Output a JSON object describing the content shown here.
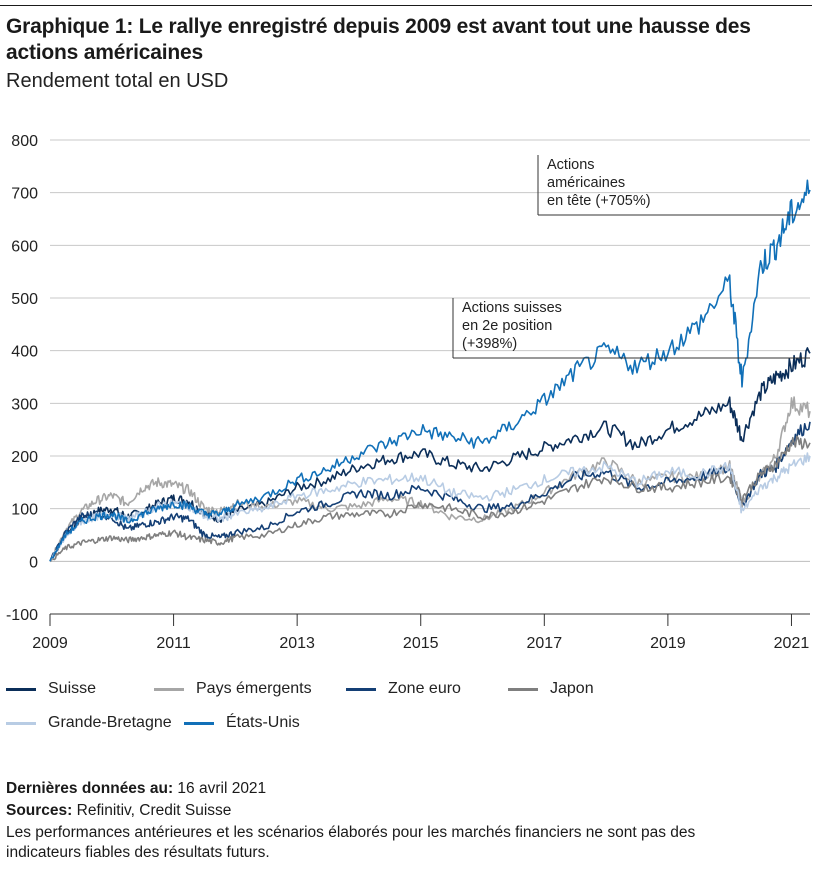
{
  "header": {
    "title": "Graphique 1: Le rallye enregistré depuis 2009 est avant tout une hausse des actions américaines",
    "subtitle": "Rendement total en USD"
  },
  "footer": {
    "last_data_label": "Dernières données au:",
    "last_data_value": "16 avril 2021",
    "sources_label": "Sources:",
    "sources_value": "Refinitiv, Credit Suisse",
    "disclaimer": "Les performances antérieures et les scénarios élaborés pour les marchés financiers ne sont pas des indicateurs fiables des résultats futurs."
  },
  "chart_data": {
    "type": "line",
    "title": "",
    "xlabel": "",
    "ylabel": "",
    "xlim": [
      2009,
      2021.3
    ],
    "ylim": [
      -100,
      800
    ],
    "yticks": [
      -100,
      0,
      100,
      200,
      300,
      400,
      500,
      600,
      700,
      800
    ],
    "xticks": [
      2009,
      2011,
      2013,
      2015,
      2017,
      2019,
      2021
    ],
    "grid": "horizontal",
    "legend_position": "bottom",
    "annotations": [
      {
        "lines": [
          "Actions",
          "américaines",
          "en tête (+705%)"
        ],
        "target_x": 2021.2,
        "target_y": 670
      },
      {
        "lines": [
          "Actions suisses",
          "en 2e position",
          "(+398%)"
        ],
        "target_x": 2021.2,
        "target_y": 385
      }
    ],
    "series": [
      {
        "name": "Suisse",
        "color": "#0b2e59",
        "x": [
          2009,
          2009.25,
          2009.5,
          2009.75,
          2010,
          2010.25,
          2010.5,
          2010.75,
          2011,
          2011.25,
          2011.5,
          2011.75,
          2012,
          2012.5,
          2013,
          2013.5,
          2014,
          2014.5,
          2015,
          2015.5,
          2016,
          2016.5,
          2017,
          2017.5,
          2018,
          2018.5,
          2019,
          2019.5,
          2020,
          2020.2,
          2020.5,
          2020.75,
          2021,
          2021.3
        ],
        "values": [
          0,
          50,
          80,
          95,
          100,
          85,
          95,
          110,
          120,
          115,
          90,
          80,
          95,
          110,
          140,
          155,
          180,
          195,
          205,
          185,
          175,
          195,
          215,
          235,
          255,
          220,
          250,
          275,
          300,
          235,
          320,
          350,
          370,
          395
        ]
      },
      {
        "name": "Pays émergents",
        "color": "#a6a6a6",
        "x": [
          2009,
          2009.25,
          2009.5,
          2009.75,
          2010,
          2010.25,
          2010.5,
          2010.75,
          2011,
          2011.25,
          2011.5,
          2011.75,
          2012,
          2012.5,
          2013,
          2013.5,
          2014,
          2014.5,
          2015,
          2015.5,
          2016,
          2016.5,
          2017,
          2017.5,
          2018,
          2018.5,
          2019,
          2019.5,
          2020,
          2020.2,
          2020.5,
          2020.75,
          2021,
          2021.3
        ],
        "values": [
          0,
          60,
          95,
          115,
          125,
          110,
          140,
          150,
          145,
          135,
          100,
          95,
          110,
          105,
          115,
          100,
          105,
          120,
          110,
          85,
          80,
          100,
          130,
          165,
          190,
          150,
          160,
          160,
          180,
          110,
          160,
          200,
          300,
          285
        ]
      },
      {
        "name": "Zone euro",
        "color": "#143f75",
        "x": [
          2009,
          2009.25,
          2009.5,
          2009.75,
          2010,
          2010.25,
          2010.5,
          2010.75,
          2011,
          2011.25,
          2011.5,
          2011.75,
          2012,
          2012.5,
          2013,
          2013.5,
          2014,
          2014.5,
          2015,
          2015.5,
          2016,
          2016.5,
          2017,
          2017.5,
          2018,
          2018.5,
          2019,
          2019.5,
          2020,
          2020.2,
          2020.5,
          2020.75,
          2021,
          2021.3
        ],
        "values": [
          0,
          55,
          85,
          90,
          85,
          60,
          70,
          75,
          85,
          80,
          50,
          45,
          55,
          65,
          95,
          110,
          130,
          125,
          140,
          120,
          100,
          105,
          130,
          160,
          170,
          140,
          150,
          160,
          175,
          105,
          165,
          180,
          230,
          265
        ]
      },
      {
        "name": "Japon",
        "color": "#7f7f7f",
        "x": [
          2009,
          2009.25,
          2009.5,
          2009.75,
          2010,
          2010.25,
          2010.5,
          2010.75,
          2011,
          2011.25,
          2011.5,
          2011.75,
          2012,
          2012.5,
          2013,
          2013.5,
          2014,
          2014.5,
          2015,
          2015.5,
          2016,
          2016.5,
          2017,
          2017.5,
          2018,
          2018.5,
          2019,
          2019.5,
          2020,
          2020.2,
          2020.5,
          2020.75,
          2021,
          2021.3
        ],
        "values": [
          0,
          25,
          35,
          40,
          45,
          40,
          45,
          50,
          55,
          45,
          40,
          35,
          45,
          50,
          70,
          85,
          90,
          90,
          110,
          100,
          85,
          95,
          115,
          140,
          160,
          140,
          140,
          150,
          160,
          120,
          165,
          185,
          225,
          225
        ]
      },
      {
        "name": "Grande-Bretagne",
        "color": "#b8cce4",
        "x": [
          2009,
          2009.25,
          2009.5,
          2009.75,
          2010,
          2010.25,
          2010.5,
          2010.75,
          2011,
          2011.25,
          2011.5,
          2011.75,
          2012,
          2012.5,
          2013,
          2013.5,
          2014,
          2014.5,
          2015,
          2015.5,
          2016,
          2016.5,
          2017,
          2017.5,
          2018,
          2018.5,
          2019,
          2019.5,
          2020,
          2020.2,
          2020.5,
          2020.75,
          2021,
          2021.3
        ],
        "values": [
          0,
          45,
          75,
          85,
          90,
          80,
          90,
          105,
          110,
          105,
          85,
          80,
          90,
          100,
          125,
          135,
          150,
          155,
          160,
          130,
          120,
          135,
          155,
          170,
          180,
          150,
          170,
          165,
          180,
          95,
          140,
          160,
          180,
          200
        ]
      },
      {
        "name": "États-Unis",
        "color": "#1170b8",
        "x": [
          2009,
          2009.25,
          2009.5,
          2009.75,
          2010,
          2010.25,
          2010.5,
          2010.75,
          2011,
          2011.25,
          2011.5,
          2011.75,
          2012,
          2012.5,
          2013,
          2013.5,
          2014,
          2014.5,
          2015,
          2015.5,
          2016,
          2016.5,
          2017,
          2017.5,
          2018,
          2018.5,
          2019,
          2019.5,
          2020,
          2020.2,
          2020.5,
          2020.75,
          2021,
          2021.3
        ],
        "values": [
          0,
          50,
          75,
          85,
          90,
          75,
          90,
          100,
          110,
          105,
          90,
          90,
          105,
          125,
          155,
          175,
          205,
          225,
          250,
          235,
          225,
          260,
          305,
          360,
          400,
          370,
          400,
          450,
          530,
          340,
          560,
          600,
          660,
          705
        ]
      }
    ]
  }
}
